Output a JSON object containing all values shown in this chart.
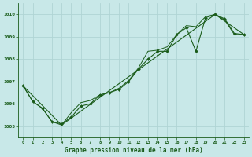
{
  "title": "Graphe pression niveau de la mer (hPa)",
  "bg_color": "#c8e8e8",
  "grid_color": "#b0d4d4",
  "line_color": "#1a5c1a",
  "xlim": [
    -0.5,
    23.5
  ],
  "ylim": [
    1004.5,
    1010.5
  ],
  "yticks": [
    1005,
    1006,
    1007,
    1008,
    1009,
    1010
  ],
  "xticks": [
    0,
    1,
    2,
    3,
    4,
    5,
    6,
    7,
    8,
    9,
    10,
    11,
    12,
    13,
    14,
    15,
    16,
    17,
    18,
    19,
    20,
    21,
    22,
    23
  ],
  "series1_x": [
    0,
    1,
    2,
    3,
    4,
    5,
    6,
    7,
    8,
    9,
    10,
    11,
    12,
    13,
    14,
    15,
    16,
    17,
    18,
    19,
    20,
    21,
    22,
    23
  ],
  "series1_y": [
    1006.8,
    1006.1,
    1005.8,
    1005.2,
    1005.1,
    1005.4,
    1005.9,
    1006.0,
    1006.4,
    1006.5,
    1006.65,
    1007.0,
    1007.55,
    1008.0,
    1008.35,
    1008.35,
    1009.1,
    1009.4,
    1008.35,
    1009.85,
    1010.0,
    1009.8,
    1009.15,
    1009.1
  ],
  "series2_x": [
    0,
    1,
    2,
    3,
    4,
    5,
    6,
    7,
    8,
    9,
    10,
    11,
    12,
    13,
    14,
    15,
    16,
    17,
    18,
    19,
    20,
    21,
    22,
    23
  ],
  "series2_y": [
    1006.8,
    1006.1,
    1005.8,
    1005.2,
    1005.05,
    1005.6,
    1006.05,
    1006.15,
    1006.4,
    1006.5,
    1006.7,
    1007.05,
    1007.6,
    1008.35,
    1008.4,
    1008.55,
    1009.1,
    1009.5,
    1009.45,
    1009.9,
    1010.0,
    1009.75,
    1009.1,
    1009.1
  ],
  "series3_x": [
    0,
    4,
    20,
    23
  ],
  "series3_y": [
    1006.8,
    1005.05,
    1010.0,
    1009.1
  ]
}
